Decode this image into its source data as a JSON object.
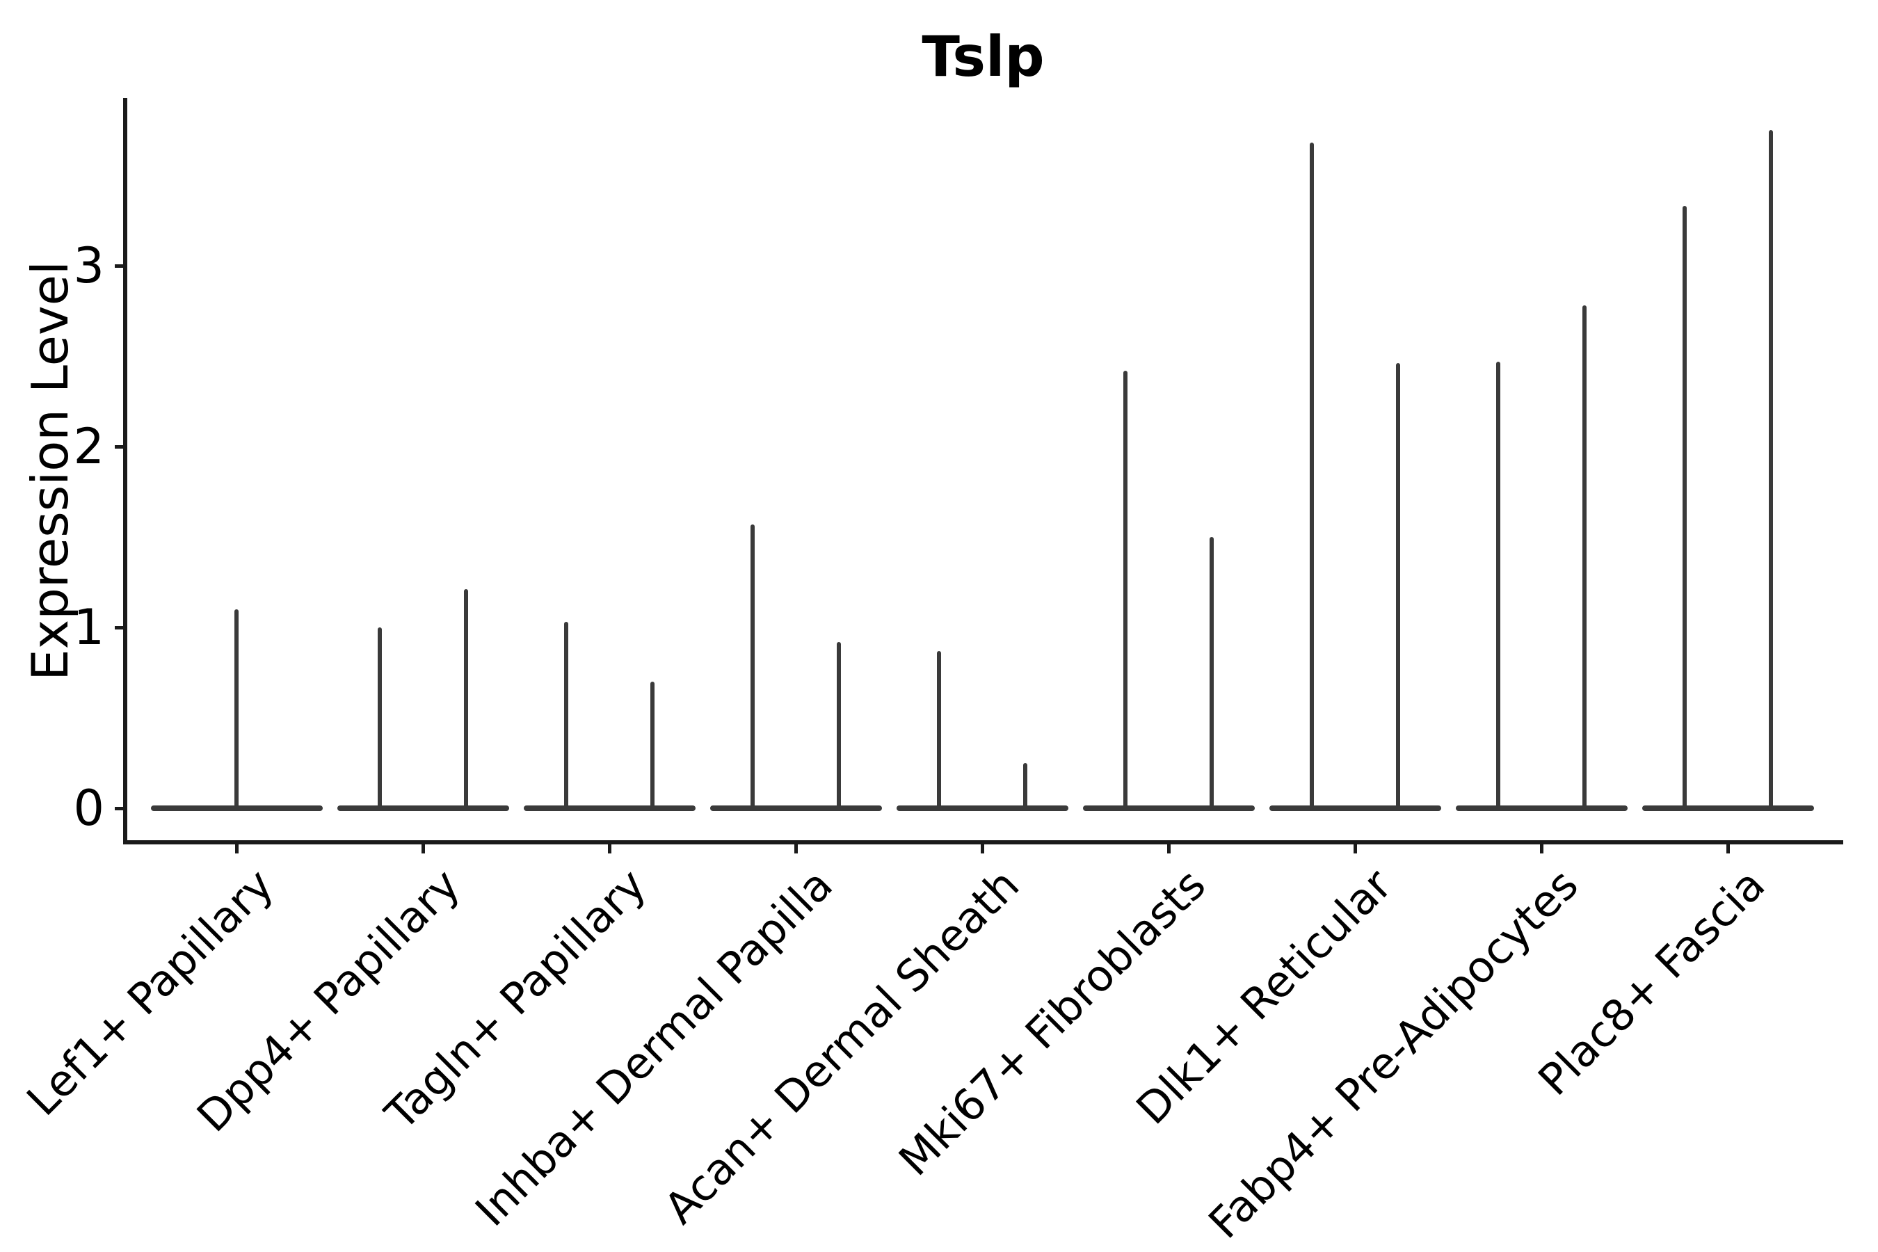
{
  "title": "Tslp",
  "axes": {
    "ylabel": "Expression Level",
    "ytick_labels": [
      "0",
      "1",
      "2",
      "3"
    ]
  },
  "colors": {
    "violin": "#3a3a3a",
    "spine": "#1a1a1a",
    "text": "#000000",
    "background": "#ffffff"
  },
  "chart_data": {
    "type": "violin",
    "title": "Tslp",
    "xlabel": "",
    "ylabel": "Expression Level",
    "yticks": [
      0,
      1,
      2,
      3
    ],
    "ylim": [
      -0.18,
      3.93
    ],
    "grid": false,
    "legend": "none",
    "baseline_value": 0,
    "shape_note": "each violin is a flat wide base at 0 with a thin vertical needle up to its max expression; categories with two values show two side-by-side violins",
    "categories": [
      "Lef1+ Papillary",
      "Dpp4+ Papillary",
      "Tagln+ Papillary",
      "Inhba+ Dermal Papilla",
      "Acan+ Dermal Sheath",
      "Mki67+ Fibroblasts",
      "Dlk1+ Reticular",
      "Fabp4+ Pre-Adipocytes",
      "Plac8+ Fascia"
    ],
    "violins": [
      {
        "category": "Lef1+ Papillary",
        "max_expression": [
          1.1
        ]
      },
      {
        "category": "Dpp4+ Papillary",
        "max_expression": [
          1.0,
          1.21
        ]
      },
      {
        "category": "Tagln+ Papillary",
        "max_expression": [
          1.03,
          0.7
        ]
      },
      {
        "category": "Inhba+ Dermal Papilla",
        "max_expression": [
          1.57,
          0.92
        ]
      },
      {
        "category": "Acan+ Dermal Sheath",
        "max_expression": [
          0.87,
          0.25
        ]
      },
      {
        "category": "Mki67+ Fibroblasts",
        "max_expression": [
          2.42,
          1.5
        ]
      },
      {
        "category": "Dlk1+ Reticular",
        "max_expression": [
          3.68,
          2.46
        ]
      },
      {
        "category": "Fabp4+ Pre-Adipocytes",
        "max_expression": [
          2.47,
          2.78
        ]
      },
      {
        "category": "Plac8+ Fascia",
        "max_expression": [
          3.33,
          3.75
        ]
      }
    ]
  }
}
